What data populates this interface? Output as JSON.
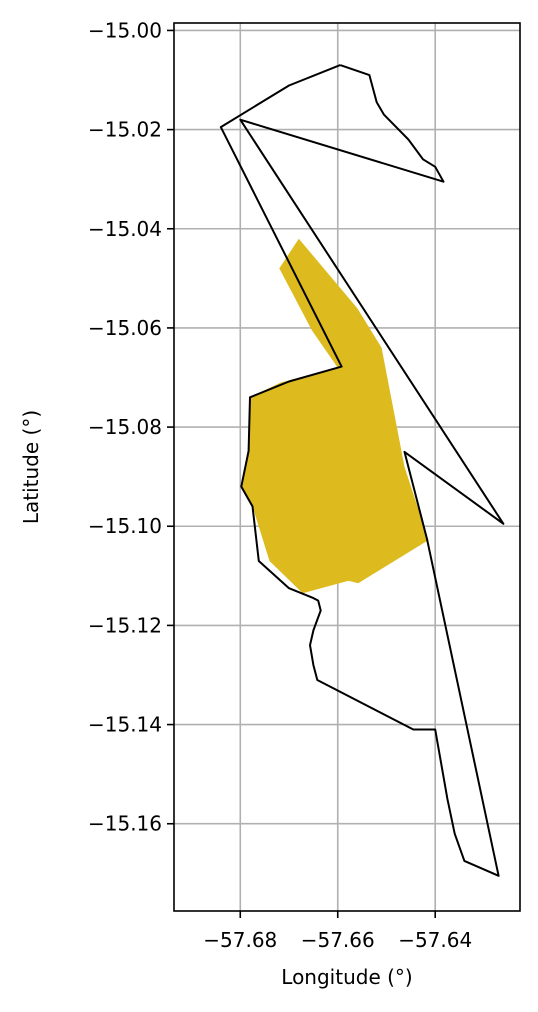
{
  "chart_data": {
    "type": "map",
    "xlabel": "Longitude (°)",
    "ylabel": "Latitude (°)",
    "xlim": [
      -57.6936,
      -57.6226
    ],
    "ylim": [
      -15.1776,
      -14.9985
    ],
    "grid": true,
    "x_ticks": [
      -57.68,
      -57.66,
      -57.64
    ],
    "x_tick_labels": [
      "−57.68",
      "−57.66",
      "−57.64"
    ],
    "y_ticks": [
      -15.0,
      -15.02,
      -15.04,
      -15.06,
      -15.08,
      -15.1,
      -15.12,
      -15.14,
      -15.16
    ],
    "y_tick_labels": [
      "−15.00",
      "−15.02",
      "−15.04",
      "−15.06",
      "−15.08",
      "−15.10",
      "−15.12",
      "−15.14",
      "−15.16"
    ],
    "fill_color": "#ddbb1f",
    "outline_color": "#000000",
    "filled_area": [
      [
        -57.668,
        -15.042
      ],
      [
        -57.656,
        -15.056
      ],
      [
        -57.651,
        -15.064
      ],
      [
        -57.6463,
        -15.088
      ],
      [
        -57.6414,
        -15.1028
      ],
      [
        -57.6558,
        -15.1115
      ],
      [
        -57.6578,
        -15.111
      ],
      [
        -57.6672,
        -15.1135
      ],
      [
        -57.674,
        -15.107
      ],
      [
        -57.6775,
        -15.096
      ],
      [
        -57.6793,
        -15.093
      ],
      [
        -57.6798,
        -15.0922
      ],
      [
        -57.6782,
        -15.0848
      ],
      [
        -57.678,
        -15.074
      ],
      [
        -57.6717,
        -15.071
      ],
      [
        -57.66,
        -15.068
      ],
      [
        -57.6653,
        -15.0605
      ],
      [
        -57.672,
        -15.048
      ]
    ],
    "outline": [
      [
        -57.6595,
        -15.007
      ],
      [
        -57.67,
        -15.0111
      ],
      [
        -57.684,
        -15.0195
      ],
      [
        -57.6592,
        -15.0678
      ],
      [
        -57.67,
        -15.0708
      ],
      [
        -57.678,
        -15.074
      ],
      [
        -57.6783,
        -15.0848
      ],
      [
        -57.6798,
        -15.092
      ],
      [
        -57.6775,
        -15.096
      ],
      [
        -57.6762,
        -15.107
      ],
      [
        -57.67,
        -15.1125
      ],
      [
        -57.665,
        -15.1145
      ],
      [
        -57.664,
        -15.115
      ],
      [
        -57.6635,
        -15.117
      ],
      [
        -57.665,
        -15.121
      ],
      [
        -57.6657,
        -15.124
      ],
      [
        -57.665,
        -15.128
      ],
      [
        -57.6642,
        -15.131
      ],
      [
        -57.6445,
        -15.141
      ],
      [
        -57.64,
        -15.141
      ],
      [
        -57.6375,
        -15.155
      ],
      [
        -57.636,
        -15.162
      ],
      [
        -57.634,
        -15.1675
      ],
      [
        -57.627,
        -15.1705
      ],
      [
        -57.6417,
        -15.1025
      ],
      [
        -57.6463,
        -15.085
      ],
      [
        -57.626,
        -15.0995
      ],
      [
        -57.68,
        -15.018
      ],
      [
        -57.6383,
        -15.0305
      ],
      [
        -57.64,
        -15.0275
      ],
      [
        -57.6425,
        -15.026
      ],
      [
        -57.6455,
        -15.022
      ],
      [
        -57.6505,
        -15.017
      ],
      [
        -57.652,
        -15.0145
      ],
      [
        -57.6535,
        -15.009
      ],
      [
        -57.6595,
        -15.007
      ]
    ]
  }
}
